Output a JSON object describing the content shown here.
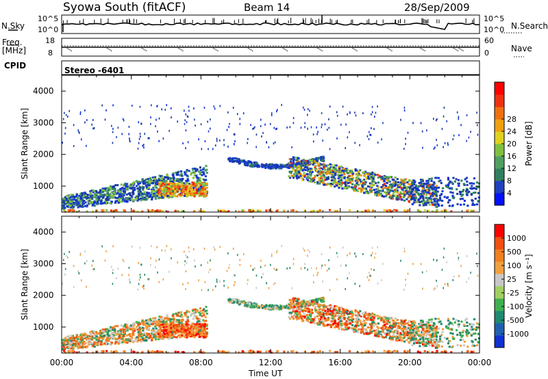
{
  "header": {
    "station": "Syowa South (fitACF)",
    "beam": "Beam 14",
    "date": "28/Sep/2009"
  },
  "noise_panel": {
    "left_label": "N.Sky",
    "right_label": "N.Search",
    "tick_top": "10^5",
    "tick_bottom": "10^0",
    "tick_top_right": "10^5",
    "tick_bottom_right": "10^0"
  },
  "freq_panel": {
    "left_label_1": "Freq.",
    "left_label_2": "[MHz]",
    "right_label": "Nave",
    "left_ticks": [
      "18",
      "8"
    ],
    "right_ticks": [
      "60",
      "0"
    ]
  },
  "cpid": {
    "label": "CPID",
    "value": "Stereo -6401"
  },
  "chart_data": [
    {
      "type": "heatmap",
      "name": "power",
      "ylabel": "Slant Range [km]",
      "xlabel": "Time UT",
      "ylim": [
        180,
        4500
      ],
      "y_ticks": [
        1000,
        2000,
        3000,
        4000
      ],
      "x_ticks": [
        "00:00",
        "04:00",
        "08:00",
        "12:00",
        "16:00",
        "20:00",
        "00:00"
      ],
      "x_tick_hours": [
        0,
        4,
        8,
        12,
        16,
        20,
        24
      ],
      "colorbar": {
        "label": "Power [dB]",
        "tick_labels": [
          "4",
          "8",
          "12",
          "16",
          "20",
          "24",
          "28"
        ],
        "colors": [
          "#0010ff",
          "#2040c0",
          "#2f8060",
          "#50a060",
          "#80c040",
          "#e0d020",
          "#f0a010",
          "#f07010",
          "#f03010",
          "#ff0000"
        ]
      }
    },
    {
      "type": "heatmap",
      "name": "velocity",
      "ylabel": "Slant Range [km]",
      "xlabel": "Time UT",
      "ylim": [
        180,
        4500
      ],
      "y_ticks": [
        1000,
        2000,
        3000,
        4000
      ],
      "x_ticks": [
        "00:00",
        "04:00",
        "08:00",
        "12:00",
        "16:00",
        "20:00",
        "00:00"
      ],
      "x_tick_hours": [
        0,
        4,
        8,
        12,
        16,
        20,
        24
      ],
      "colorbar": {
        "label": "Velocity [m s⁻¹]",
        "tick_labels": [
          "1000",
          "500",
          "100",
          "25",
          "-25",
          "-100",
          "-500",
          "-1000"
        ],
        "colors": [
          "#1030d0",
          "#2060b0",
          "#208a70",
          "#40b050",
          "#a0d060",
          "#c8c8c8",
          "#f0a040",
          "#f08020",
          "#f05010",
          "#ff0000"
        ]
      }
    }
  ]
}
